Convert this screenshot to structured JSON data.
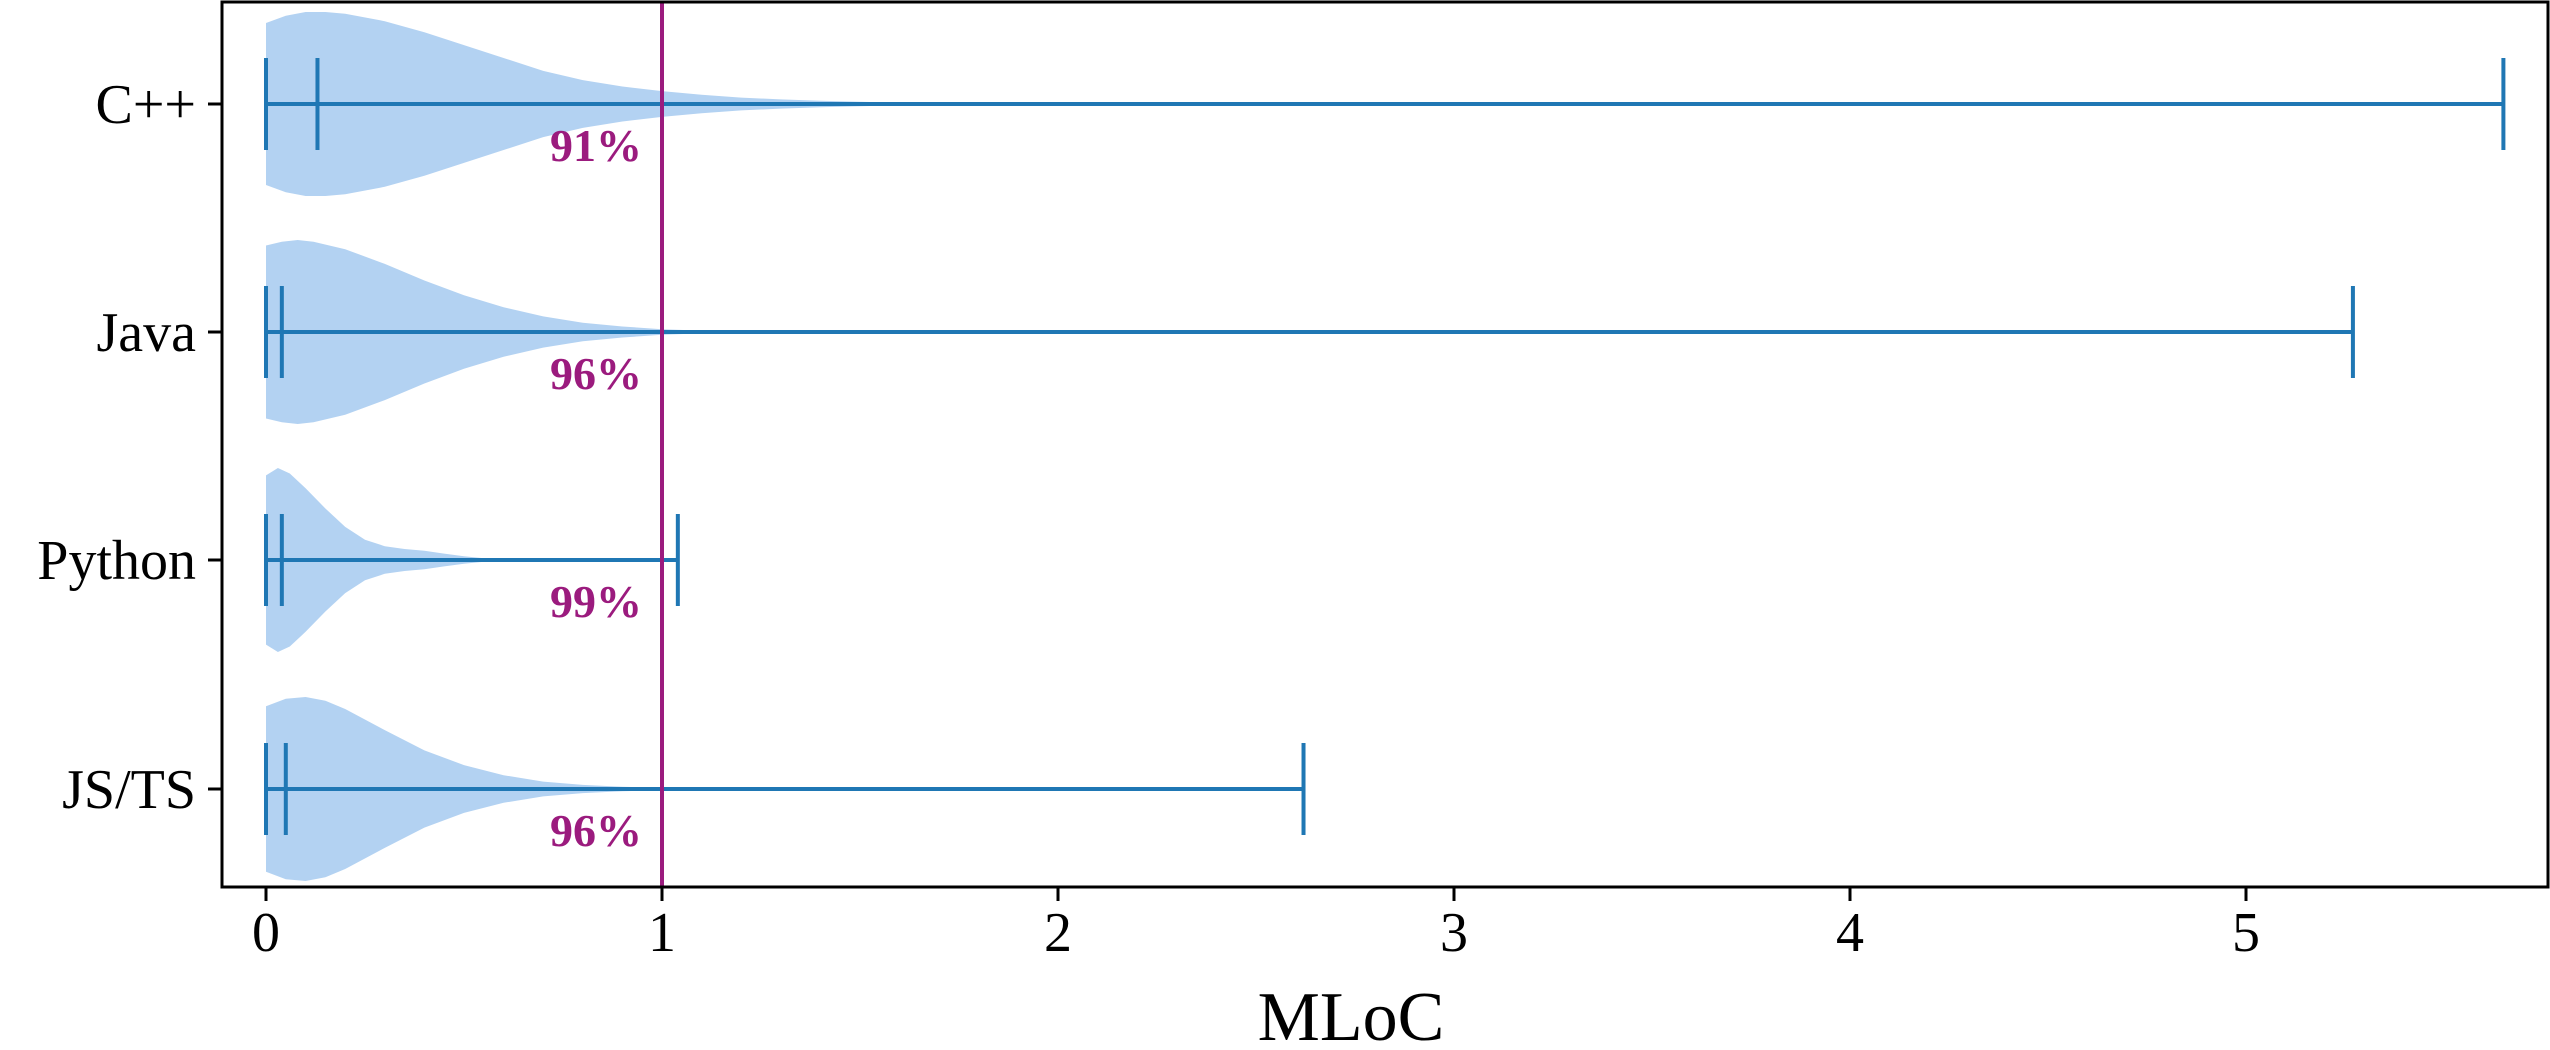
{
  "chart_data": {
    "type": "violin",
    "orientation": "horizontal",
    "xlabel": "MLoC",
    "ylabel": "",
    "title": "",
    "xlim": [
      -0.11,
      5.8
    ],
    "xticks": [
      0,
      1,
      2,
      3,
      4,
      5
    ],
    "grid": false,
    "colors": {
      "violin": "#b3d2f2",
      "whisker": "#1f77b4",
      "threshold": "#9b1b7e",
      "label": "#9b1b7e"
    },
    "threshold": {
      "x": 1
    },
    "series": [
      {
        "category": "C++",
        "min": 0.0,
        "median": 0.13,
        "max": 5.65,
        "pct_below": "91%",
        "density": [
          [
            0,
            0.88
          ],
          [
            0.05,
            0.96
          ],
          [
            0.1,
            1.0
          ],
          [
            0.15,
            1.0
          ],
          [
            0.2,
            0.98
          ],
          [
            0.3,
            0.9
          ],
          [
            0.4,
            0.78
          ],
          [
            0.5,
            0.64
          ],
          [
            0.6,
            0.5
          ],
          [
            0.7,
            0.36
          ],
          [
            0.8,
            0.26
          ],
          [
            0.9,
            0.19
          ],
          [
            1.0,
            0.14
          ],
          [
            1.1,
            0.1
          ],
          [
            1.2,
            0.07
          ],
          [
            1.3,
            0.05
          ],
          [
            1.4,
            0.035
          ],
          [
            1.5,
            0.024
          ],
          [
            1.6,
            0.014
          ],
          [
            1.7,
            0.007
          ],
          [
            1.8,
            0.003
          ],
          [
            1.9,
            0
          ]
        ]
      },
      {
        "category": "Java",
        "min": 0.0,
        "median": 0.04,
        "max": 5.27,
        "pct_below": "96%",
        "density": [
          [
            0,
            0.94
          ],
          [
            0.04,
            0.98
          ],
          [
            0.08,
            1.0
          ],
          [
            0.12,
            0.98
          ],
          [
            0.2,
            0.9
          ],
          [
            0.3,
            0.74
          ],
          [
            0.4,
            0.56
          ],
          [
            0.5,
            0.4
          ],
          [
            0.6,
            0.27
          ],
          [
            0.7,
            0.17
          ],
          [
            0.8,
            0.1
          ],
          [
            0.9,
            0.06
          ],
          [
            1.0,
            0.03
          ],
          [
            1.1,
            0.015
          ],
          [
            1.2,
            0.008
          ],
          [
            1.3,
            0.004
          ],
          [
            1.4,
            0
          ]
        ]
      },
      {
        "category": "Python",
        "min": 0.0,
        "median": 0.04,
        "max": 1.04,
        "pct_below": "99%",
        "density": [
          [
            0,
            0.92
          ],
          [
            0.03,
            1.0
          ],
          [
            0.06,
            0.94
          ],
          [
            0.1,
            0.78
          ],
          [
            0.15,
            0.56
          ],
          [
            0.2,
            0.36
          ],
          [
            0.25,
            0.22
          ],
          [
            0.3,
            0.15
          ],
          [
            0.35,
            0.12
          ],
          [
            0.4,
            0.1
          ],
          [
            0.45,
            0.07
          ],
          [
            0.5,
            0.04
          ],
          [
            0.55,
            0.02
          ],
          [
            0.6,
            0.01
          ],
          [
            0.65,
            0
          ]
        ]
      },
      {
        "category": "JS/TS",
        "min": 0.0,
        "median": 0.05,
        "max": 2.62,
        "pct_below": "96%",
        "density": [
          [
            0,
            0.9
          ],
          [
            0.05,
            0.98
          ],
          [
            0.1,
            1.0
          ],
          [
            0.15,
            0.96
          ],
          [
            0.2,
            0.87
          ],
          [
            0.3,
            0.64
          ],
          [
            0.4,
            0.42
          ],
          [
            0.5,
            0.26
          ],
          [
            0.6,
            0.15
          ],
          [
            0.7,
            0.08
          ],
          [
            0.8,
            0.045
          ],
          [
            0.9,
            0.025
          ],
          [
            1.0,
            0.012
          ],
          [
            1.1,
            0.005
          ],
          [
            1.2,
            0
          ]
        ]
      }
    ]
  }
}
